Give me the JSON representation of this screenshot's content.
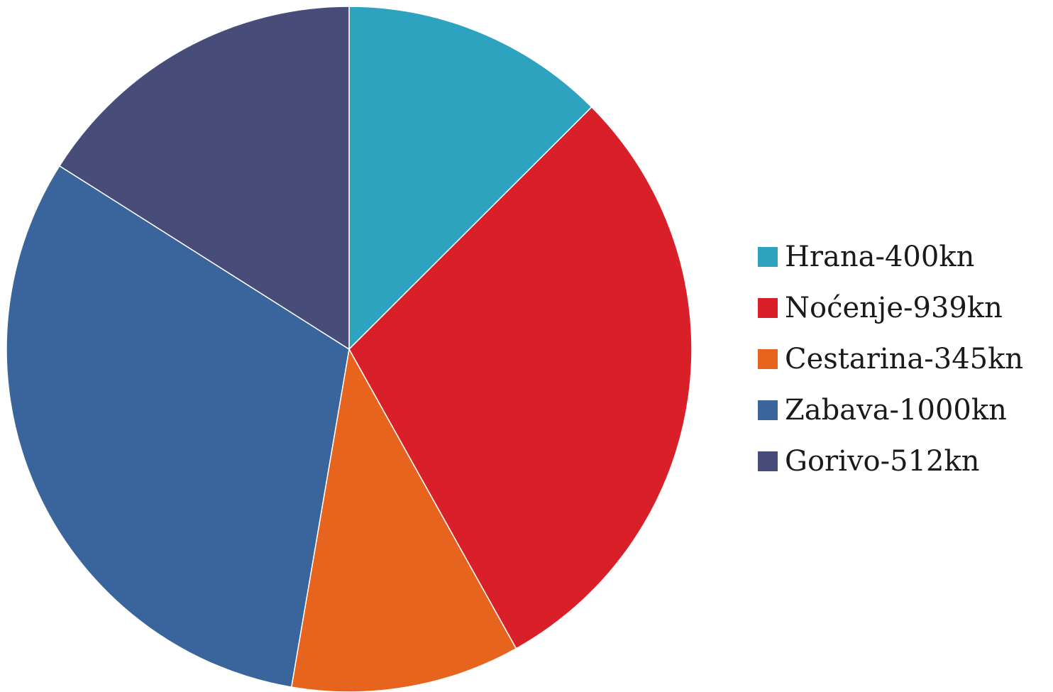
{
  "chart_data": {
    "type": "pie",
    "title": "",
    "legend_position": "right",
    "slices": [
      {
        "label": "Hrana-400kn",
        "value": 400,
        "color": "#2ea3c0"
      },
      {
        "label": "Noćenje-939kn",
        "value": 939,
        "color": "#d91f28"
      },
      {
        "label": "Cestarina-345kn",
        "value": 345,
        "color": "#e6641e"
      },
      {
        "label": "Zabava-1000kn",
        "value": 1000,
        "color": "#3a649c"
      },
      {
        "label": "Gorivo-512kn",
        "value": 512,
        "color": "#484c78"
      }
    ]
  }
}
